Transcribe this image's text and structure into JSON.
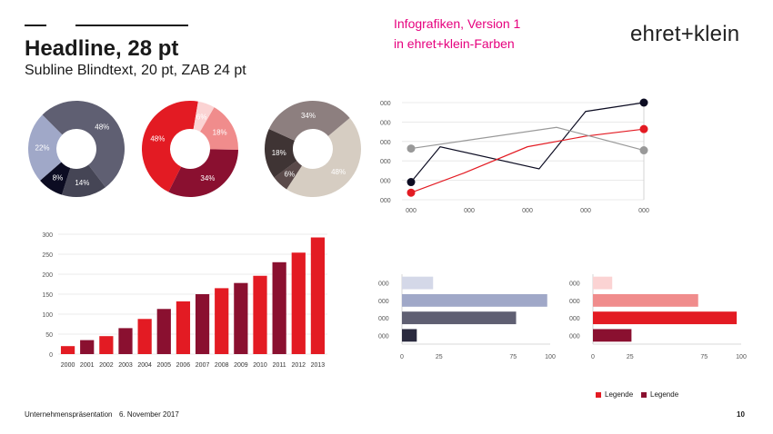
{
  "header": {
    "headline": "Headline, 28 pt",
    "subline": "Subline Blindtext, 20 pt, ZAB 24 pt",
    "info_line1": "Infografiken, Version 1",
    "info_line2": "in ehret+klein-Farben",
    "logo_text": "ehret+klein"
  },
  "footer": {
    "presentation": "Unternehmenspräsentation",
    "date": "6. November 2017",
    "page_number": "10"
  },
  "colors": {
    "red": "#e31b23",
    "salmon": "#f08c8c",
    "pink_light": "#fbd3d3",
    "maroon": "#8a1030",
    "slate": "#5f5f72",
    "slate_dark": "#454555",
    "navy": "#0c0c22",
    "periwinkle": "#a0a8c8",
    "lavender_light": "#d4d8e8",
    "taupe": "#8d7f7f",
    "beige": "#d6cdc2",
    "brown_dark": "#5a4a4a",
    "brown_mid": "#3f3434",
    "grey_line": "#999999"
  },
  "chart_data": [
    {
      "type": "pie",
      "variant": "donut",
      "slices": [
        {
          "label": "48%",
          "value": 48,
          "color": "#5f5f72"
        },
        {
          "label": "14%",
          "value": 14,
          "color": "#454555"
        },
        {
          "label": "8%",
          "value": 8,
          "color": "#0c0c22"
        },
        {
          "label": "22%",
          "value": 22,
          "color": "#a0a8c8"
        }
      ]
    },
    {
      "type": "pie",
      "variant": "donut",
      "slices": [
        {
          "label": "18%",
          "value": 18,
          "color": "#f08c8c"
        },
        {
          "label": "34%",
          "value": 34,
          "color": "#8a1030"
        },
        {
          "label": "48%",
          "value": 48,
          "color": "#e31b23"
        },
        {
          "label": "6%",
          "value": 6,
          "color": "#fbd3d3"
        }
      ]
    },
    {
      "type": "pie",
      "variant": "donut",
      "slices": [
        {
          "label": "48%",
          "value": 48,
          "color": "#d6cdc2"
        },
        {
          "label": "6%",
          "value": 6,
          "color": "#5a4a4a"
        },
        {
          "label": "18%",
          "value": 18,
          "color": "#3f3434"
        },
        {
          "label": "34%",
          "value": 34,
          "color": "#8d7f7f"
        }
      ]
    },
    {
      "type": "line",
      "x_labels": [
        "000",
        "000",
        "000",
        "000",
        "000"
      ],
      "y_labels": [
        "000",
        "000",
        "000",
        "000",
        "000",
        "000"
      ],
      "xlim": [
        0,
        4
      ],
      "ylim": [
        0,
        5.5
      ],
      "series": [
        {
          "color": "#0c0c22",
          "x": [
            0,
            0.5,
            2.2,
            3,
            4
          ],
          "y": [
            1,
            3,
            1.75,
            5,
            5.5
          ],
          "marker_ends": true
        },
        {
          "color": "#e31b23",
          "x": [
            0,
            0.9,
            2,
            3,
            4
          ],
          "y": [
            0.4,
            1.5,
            3,
            3.6,
            4
          ],
          "marker_ends": true
        },
        {
          "color": "#999999",
          "x": [
            0,
            2.5,
            4
          ],
          "y": [
            2.9,
            4.1,
            2.8
          ],
          "marker_ends": true
        }
      ]
    },
    {
      "type": "bar",
      "categories": [
        "2000",
        "2001",
        "2002",
        "2003",
        "2004",
        "2005",
        "2006",
        "2007",
        "2008",
        "2009",
        "2010",
        "2011",
        "2012",
        "2013"
      ],
      "values": [
        20,
        35,
        45,
        65,
        88,
        113,
        132,
        150,
        165,
        178,
        196,
        230,
        254,
        292
      ],
      "colors": [
        "#e31b23",
        "#8a1030",
        "#e31b23",
        "#8a1030",
        "#e31b23",
        "#8a1030",
        "#e31b23",
        "#8a1030",
        "#e31b23",
        "#8a1030",
        "#e31b23",
        "#8a1030",
        "#e31b23",
        "#e31b23"
      ],
      "ylim": [
        0,
        300
      ],
      "yticks": [
        0,
        50,
        100,
        150,
        200,
        250,
        300
      ],
      "grid": true
    },
    {
      "type": "bar",
      "orientation": "horizontal",
      "categories": [
        "000",
        "000",
        "000",
        "000"
      ],
      "values": [
        21,
        98,
        77,
        10
      ],
      "colors": [
        "#d4d8e8",
        "#a0a8c8",
        "#5f5f72",
        "#2a2a3e"
      ],
      "xlim": [
        0,
        100
      ],
      "xticks": [
        0,
        25,
        75,
        100
      ]
    },
    {
      "type": "bar",
      "orientation": "horizontal",
      "categories": [
        "000",
        "000",
        "000",
        "000"
      ],
      "values": [
        13,
        71,
        97,
        26
      ],
      "colors": [
        "#fbd3d3",
        "#f08c8c",
        "#e31b23",
        "#8a1030"
      ],
      "xlim": [
        0,
        100
      ],
      "xticks": [
        0,
        25,
        75,
        100
      ],
      "legend": [
        {
          "name": "Legende",
          "color": "#e31b23"
        },
        {
          "name": "Legende",
          "color": "#8a1030"
        }
      ],
      "legend_position": "bottom"
    }
  ]
}
